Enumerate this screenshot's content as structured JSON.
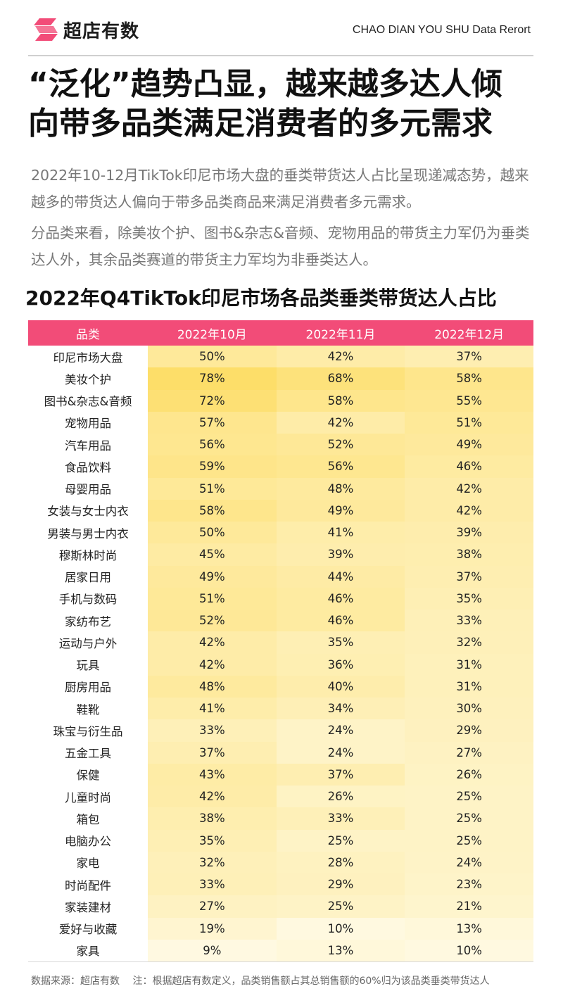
{
  "brand": {
    "name": "超店有数",
    "report_label": "CHAO DIAN YOU SHU Data Rerort",
    "logo_color": "#f24c78"
  },
  "headline": {
    "line1": "“泛化”趋势凸显，越来越多达人倾",
    "line2": "向带多品类满足消费者的多元需求"
  },
  "paragraphs": [
    "2022年10-12月TikTok印尼市场大盘的垂类带货达人占比呈现递减态势，越来越多的带货达人偏向于带多品类商品来满足消费者多元需求。",
    "分品类来看，除美妆个护、图书&杂志&音频、宠物用品的带货主力军仍为垂类达人外，其余品类赛道的带货主力军均为非垂类达人。"
  ],
  "chart_data": {
    "type": "table",
    "title": "2022年Q4TikTok印尼市场各品类垂类带货达人占比",
    "columns": [
      "品类",
      "2022年10月",
      "2022年11月",
      "2022年12月"
    ],
    "header_color": "#f24c78",
    "heat_colors": {
      "low": "#fffdf1",
      "high": "#fddd66"
    },
    "rows": [
      {
        "category": "印尼市场大盘",
        "values": [
          50,
          42,
          37
        ]
      },
      {
        "category": "美妆个护",
        "values": [
          78,
          68,
          58
        ]
      },
      {
        "category": "图书&杂志&音频",
        "values": [
          72,
          58,
          55
        ]
      },
      {
        "category": "宠物用品",
        "values": [
          57,
          42,
          51
        ]
      },
      {
        "category": "汽车用品",
        "values": [
          56,
          52,
          49
        ]
      },
      {
        "category": "食品饮料",
        "values": [
          59,
          56,
          46
        ]
      },
      {
        "category": "母婴用品",
        "values": [
          51,
          48,
          42
        ]
      },
      {
        "category": "女装与女士内衣",
        "values": [
          58,
          49,
          42
        ]
      },
      {
        "category": "男装与男士内衣",
        "values": [
          50,
          41,
          39
        ]
      },
      {
        "category": "穆斯林时尚",
        "values": [
          45,
          39,
          38
        ]
      },
      {
        "category": "居家日用",
        "values": [
          49,
          44,
          37
        ]
      },
      {
        "category": "手机与数码",
        "values": [
          51,
          46,
          35
        ]
      },
      {
        "category": "家纺布艺",
        "values": [
          52,
          46,
          33
        ]
      },
      {
        "category": "运动与户外",
        "values": [
          42,
          35,
          32
        ]
      },
      {
        "category": "玩具",
        "values": [
          42,
          36,
          31
        ]
      },
      {
        "category": "厨房用品",
        "values": [
          48,
          40,
          31
        ]
      },
      {
        "category": "鞋靴",
        "values": [
          41,
          34,
          30
        ]
      },
      {
        "category": "珠宝与衍生品",
        "values": [
          33,
          24,
          29
        ]
      },
      {
        "category": "五金工具",
        "values": [
          37,
          24,
          27
        ]
      },
      {
        "category": "保健",
        "values": [
          43,
          37,
          26
        ]
      },
      {
        "category": "儿童时尚",
        "values": [
          42,
          26,
          25
        ]
      },
      {
        "category": "箱包",
        "values": [
          38,
          33,
          25
        ]
      },
      {
        "category": "电脑办公",
        "values": [
          35,
          25,
          25
        ]
      },
      {
        "category": "家电",
        "values": [
          32,
          28,
          24
        ]
      },
      {
        "category": "时尚配件",
        "values": [
          33,
          29,
          23
        ]
      },
      {
        "category": "家装建材",
        "values": [
          27,
          25,
          21
        ]
      },
      {
        "category": "爱好与收藏",
        "values": [
          19,
          10,
          13
        ]
      },
      {
        "category": "家具",
        "values": [
          9,
          13,
          10
        ]
      }
    ]
  },
  "footer": {
    "source": "数据来源：超店有数",
    "note": "注：根据超店有数定义，品类销售额占其总销售额的60%归为该品类垂类带货达人"
  }
}
